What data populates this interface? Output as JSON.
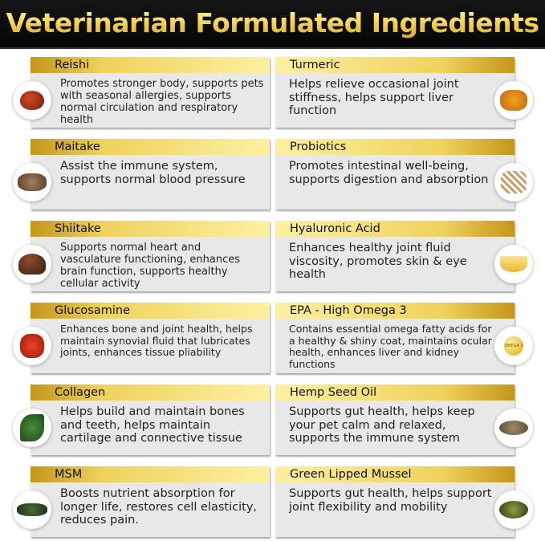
{
  "title": "Veterinarian Formulated Ingredients",
  "colors": {
    "header_bg": "#0a0a0a",
    "gold_dark": "#c4961a",
    "gold_light": "#fdf0a2",
    "card_bg": "#e8e8e8"
  },
  "left": [
    {
      "name": "Reishi",
      "description": "Promotes stronger body, supports pets with seasonal allergies, supports normal circulation and respiratory health",
      "icon": "reishi-mushroom-icon"
    },
    {
      "name": "Maitake",
      "description": "Assist the immune system, supports normal blood pressure",
      "icon": "maitake-mushroom-icon"
    },
    {
      "name": "Shiitake",
      "description": "Supports normal heart and vasculature functioning, enhances brain function, supports healthy cellular activity",
      "icon": "shiitake-mushroom-icon"
    },
    {
      "name": "Glucosamine",
      "description": "Enhances bone and joint health, helps maintain synovial fluid that lubricates joints, enhances tissue pliability",
      "icon": "lobster-icon"
    },
    {
      "name": "Collagen",
      "description": "Helps build and maintain bones and teeth, helps maintain cartilage and connective tissue",
      "icon": "leafy-greens-icon"
    },
    {
      "name": "MSM",
      "description": "Boosts nutrient absorption for longer life, restores cell elasticity, reduces pain.",
      "icon": "herbs-icon"
    }
  ],
  "right": [
    {
      "name": "Turmeric",
      "description": "Helps relieve occasional joint stiffness, helps support liver function",
      "icon": "turmeric-root-icon"
    },
    {
      "name": "Probiotics",
      "description": "Promotes intestinal well-being, supports digestion and absorption",
      "icon": "probiotics-icon"
    },
    {
      "name": "Hyaluronic Acid",
      "description": "Enhances healthy joint fluid viscosity, promotes skin & eye health",
      "icon": "oil-bowl-icon"
    },
    {
      "name": "EPA - High Omega 3",
      "description": "Contains essential omega fatty acids for a healthy & shiny coat, maintains ocular health, enhances liver and kidney functions",
      "icon": "omega-3-icon",
      "icon_text": "OMEGA 3"
    },
    {
      "name": "Hemp Seed Oil",
      "description": "Supports gut health, helps keep your pet calm and relaxed, supports the immune system",
      "icon": "hemp-seeds-icon"
    },
    {
      "name": "Green Lipped Mussel",
      "description": "Supports gut health, helps support joint flexibility and mobility",
      "icon": "mussel-icon"
    }
  ]
}
